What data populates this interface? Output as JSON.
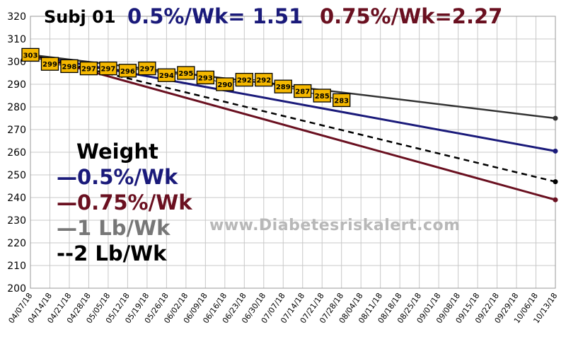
{
  "header": {
    "subject": "Subj 01",
    "rate_half": "0.5%/Wk= 1.51",
    "rate_three_quarter": "0.75%/Wk=2.27"
  },
  "legend": {
    "title": "Weight",
    "items": [
      "—0.5%/Wk",
      "—0.75%/Wk",
      "—1 Lb/Wk",
      "--2 Lb/Wk"
    ]
  },
  "watermark": "www.Diabetesriskalert.com",
  "colors": {
    "weight_marker": "#f5b800",
    "half_pct_line": "#1a1a7a",
    "three_quarter_pct_line": "#6a1020",
    "one_lb_line": "#333333",
    "two_lb_line": "#000000",
    "grid": "#c8c8c8"
  },
  "chart_data": {
    "type": "line",
    "ylim": [
      200,
      320
    ],
    "yticks": [
      200,
      210,
      220,
      230,
      240,
      250,
      260,
      270,
      280,
      290,
      300,
      310,
      320
    ],
    "grid": true,
    "legend_position": "left",
    "x": [
      "04/07/18",
      "04/14/18",
      "04/21/18",
      "04/28/18",
      "05/05/18",
      "05/12/18",
      "05/19/18",
      "05/26/18",
      "06/02/18",
      "06/09/18",
      "06/16/18",
      "06/23/18",
      "06/30/18",
      "07/07/18",
      "07/14/18",
      "07/21/18",
      "07/28/18",
      "08/04/18",
      "08/11/18",
      "08/18/18",
      "08/25/18",
      "09/01/18",
      "09/08/18",
      "09/15/18",
      "09/22/18",
      "09/29/18",
      "10/06/18",
      "10/13/18"
    ],
    "weight_points": [
      303,
      299,
      298,
      297,
      297,
      296,
      297,
      294,
      295,
      293,
      290,
      292,
      292,
      289,
      287,
      285,
      283
    ],
    "series": [
      {
        "name": "0.5%/Wk",
        "start": 303,
        "end": 260.5
      },
      {
        "name": "0.75%/Wk",
        "start": 303,
        "end": 239
      },
      {
        "name": "1 Lb/Wk",
        "start": 303,
        "end": 275
      },
      {
        "name": "2 Lb/Wk",
        "start": 303,
        "end": 247
      }
    ]
  }
}
